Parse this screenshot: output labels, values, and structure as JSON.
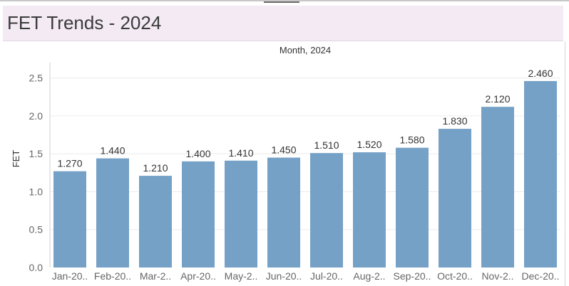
{
  "header": {
    "title": "FET Trends - 2024"
  },
  "chart_data": {
    "type": "bar",
    "title": "FET Trends - 2024",
    "xlabel": "Month, 2024",
    "ylabel": "FET",
    "categories": [
      "Jan-20..",
      "Feb-20..",
      "Mar-2..",
      "Apr-20..",
      "May-2..",
      "Jun-20..",
      "Jul-20..",
      "Aug-2..",
      "Sep-20..",
      "Oct-20..",
      "Nov-2..",
      "Dec-20.."
    ],
    "values": [
      1.27,
      1.44,
      1.21,
      1.4,
      1.41,
      1.45,
      1.51,
      1.52,
      1.58,
      1.83,
      2.12,
      2.46
    ],
    "value_labels": [
      "1.270",
      "1.440",
      "1.210",
      "1.400",
      "1.410",
      "1.450",
      "1.510",
      "1.520",
      "1.580",
      "1.830",
      "2.120",
      "2.460"
    ],
    "ylim": [
      0,
      2.6
    ],
    "yticks": [
      0.0,
      0.5,
      1.0,
      1.5,
      2.0,
      2.5
    ],
    "ytick_labels": [
      "0.0",
      "0.5",
      "1.0",
      "1.5",
      "2.0",
      "2.5"
    ],
    "grid": true,
    "bar_color": "#76a1c6",
    "gridline_color": "#ececec",
    "axis_color": "#d0d0d0"
  }
}
